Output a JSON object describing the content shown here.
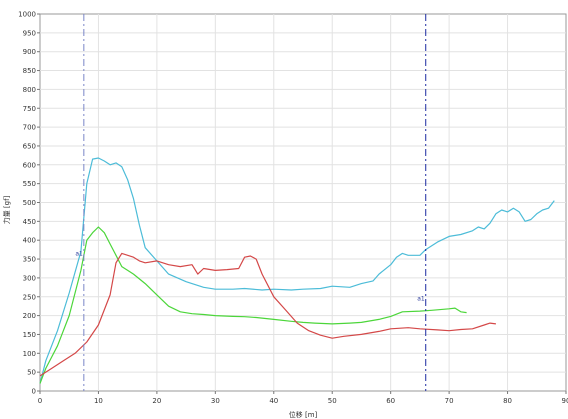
{
  "chart_data": {
    "type": "line",
    "xlabel": "位移 [m]",
    "ylabel": "力量 [gf]",
    "xlim": [
      0,
      90
    ],
    "ylim": [
      0,
      1000
    ],
    "x_ticks": [
      0,
      10,
      20,
      30,
      40,
      50,
      60,
      70,
      80,
      90
    ],
    "y_ticks": [
      0,
      50,
      100,
      150,
      200,
      250,
      300,
      350,
      400,
      450,
      500,
      550,
      600,
      650,
      700,
      750,
      800,
      850,
      900,
      950,
      1000
    ],
    "grid": true,
    "legend": "none",
    "series": [
      {
        "color": "#4cbcd8",
        "points": [
          [
            0,
            20
          ],
          [
            1,
            80
          ],
          [
            3,
            160
          ],
          [
            5,
            260
          ],
          [
            7,
            370
          ],
          [
            8,
            550
          ],
          [
            9,
            615
          ],
          [
            10,
            618
          ],
          [
            11,
            610
          ],
          [
            12,
            600
          ],
          [
            13,
            605
          ],
          [
            14,
            595
          ],
          [
            15,
            560
          ],
          [
            16,
            510
          ],
          [
            17,
            440
          ],
          [
            18,
            380
          ],
          [
            20,
            345
          ],
          [
            22,
            310
          ],
          [
            25,
            290
          ],
          [
            28,
            275
          ],
          [
            30,
            270
          ],
          [
            33,
            270
          ],
          [
            35,
            272
          ],
          [
            38,
            268
          ],
          [
            40,
            270
          ],
          [
            43,
            268
          ],
          [
            45,
            270
          ],
          [
            48,
            272
          ],
          [
            50,
            278
          ],
          [
            53,
            275
          ],
          [
            55,
            285
          ],
          [
            57,
            292
          ],
          [
            58,
            310
          ],
          [
            60,
            335
          ],
          [
            61,
            355
          ],
          [
            62,
            365
          ],
          [
            63,
            360
          ],
          [
            65,
            360
          ],
          [
            66,
            375
          ],
          [
            68,
            395
          ],
          [
            70,
            410
          ],
          [
            72,
            415
          ],
          [
            74,
            425
          ],
          [
            75,
            435
          ],
          [
            76,
            430
          ],
          [
            77,
            445
          ],
          [
            78,
            470
          ],
          [
            79,
            480
          ],
          [
            80,
            475
          ],
          [
            81,
            485
          ],
          [
            82,
            475
          ],
          [
            83,
            450
          ],
          [
            84,
            455
          ],
          [
            85,
            470
          ],
          [
            86,
            480
          ],
          [
            87,
            485
          ],
          [
            88,
            505
          ]
        ]
      },
      {
        "color": "#4cd63a",
        "points": [
          [
            0,
            20
          ],
          [
            1,
            60
          ],
          [
            3,
            120
          ],
          [
            5,
            200
          ],
          [
            7,
            320
          ],
          [
            8,
            400
          ],
          [
            9,
            420
          ],
          [
            10,
            435
          ],
          [
            11,
            420
          ],
          [
            12,
            390
          ],
          [
            13,
            360
          ],
          [
            14,
            330
          ],
          [
            15,
            320
          ],
          [
            16,
            310
          ],
          [
            18,
            285
          ],
          [
            20,
            255
          ],
          [
            22,
            225
          ],
          [
            24,
            210
          ],
          [
            26,
            205
          ],
          [
            28,
            203
          ],
          [
            30,
            200
          ],
          [
            33,
            198
          ],
          [
            35,
            197
          ],
          [
            37,
            195
          ],
          [
            40,
            190
          ],
          [
            43,
            185
          ],
          [
            45,
            182
          ],
          [
            47,
            180
          ],
          [
            50,
            178
          ],
          [
            53,
            180
          ],
          [
            55,
            182
          ],
          [
            58,
            190
          ],
          [
            60,
            198
          ],
          [
            62,
            210
          ],
          [
            65,
            212
          ],
          [
            67,
            214
          ],
          [
            70,
            218
          ],
          [
            71,
            220
          ],
          [
            72,
            210
          ],
          [
            73,
            208
          ]
        ]
      },
      {
        "color": "#d44848",
        "points": [
          [
            0,
            40
          ],
          [
            2,
            60
          ],
          [
            4,
            80
          ],
          [
            6,
            100
          ],
          [
            8,
            130
          ],
          [
            10,
            175
          ],
          [
            12,
            255
          ],
          [
            13,
            340
          ],
          [
            14,
            365
          ],
          [
            15,
            360
          ],
          [
            16,
            355
          ],
          [
            17,
            345
          ],
          [
            18,
            340
          ],
          [
            20,
            345
          ],
          [
            22,
            335
          ],
          [
            24,
            330
          ],
          [
            26,
            335
          ],
          [
            27,
            310
          ],
          [
            28,
            325
          ],
          [
            30,
            320
          ],
          [
            32,
            322
          ],
          [
            34,
            325
          ],
          [
            35,
            355
          ],
          [
            36,
            358
          ],
          [
            37,
            350
          ],
          [
            38,
            310
          ],
          [
            40,
            250
          ],
          [
            42,
            215
          ],
          [
            44,
            180
          ],
          [
            46,
            160
          ],
          [
            48,
            148
          ],
          [
            50,
            140
          ],
          [
            52,
            145
          ],
          [
            55,
            150
          ],
          [
            58,
            158
          ],
          [
            60,
            165
          ],
          [
            63,
            168
          ],
          [
            65,
            165
          ],
          [
            68,
            162
          ],
          [
            70,
            160
          ],
          [
            72,
            163
          ],
          [
            74,
            165
          ],
          [
            76,
            175
          ],
          [
            77,
            180
          ],
          [
            78,
            178
          ]
        ]
      }
    ],
    "markers": [
      {
        "x": 7.5,
        "label": "a1",
        "label_y": 360,
        "color": "#7a86c8",
        "style": "dashdot"
      },
      {
        "x": 66,
        "label": "a1",
        "label_y": 240,
        "color": "#1a2aa0",
        "style": "dashdot"
      }
    ]
  }
}
